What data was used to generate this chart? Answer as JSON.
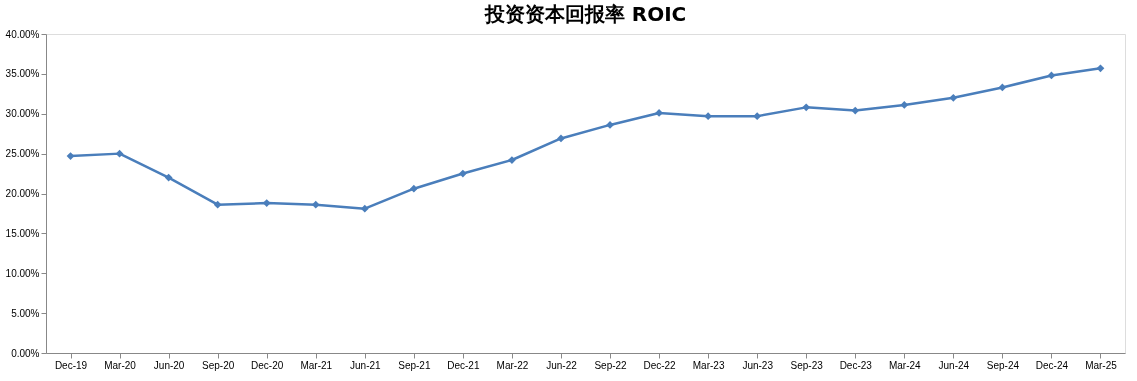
{
  "chart_data": {
    "type": "line",
    "title": "投资资本回报率 ROIC",
    "categories": [
      "Dec-19",
      "Mar-20",
      "Jun-20",
      "Sep-20",
      "Dec-20",
      "Mar-21",
      "Jun-21",
      "Sep-21",
      "Dec-21",
      "Mar-22",
      "Jun-22",
      "Sep-22",
      "Dec-22",
      "Mar-23",
      "Jun-23",
      "Sep-23",
      "Dec-23",
      "Mar-24",
      "Jun-24",
      "Sep-24",
      "Dec-24",
      "Mar-25"
    ],
    "series": [
      {
        "color": "#4a7ebb",
        "values": [
          24.7,
          25.0,
          22.0,
          18.6,
          18.8,
          18.6,
          18.1,
          20.6,
          22.5,
          24.2,
          26.9,
          28.6,
          30.1,
          29.7,
          29.7,
          30.8,
          30.4,
          31.1,
          32.0,
          33.3,
          34.8,
          35.7
        ]
      }
    ],
    "ylim": [
      0,
      40
    ],
    "yticks": [
      {
        "value": 0,
        "label": "0.00%"
      },
      {
        "value": 5,
        "label": "5.00%"
      },
      {
        "value": 10,
        "label": "10.00%"
      },
      {
        "value": 15,
        "label": "15.00%"
      },
      {
        "value": 20,
        "label": "20.00%"
      },
      {
        "value": 25,
        "label": "25.00%"
      },
      {
        "value": 30,
        "label": "30.00%"
      },
      {
        "value": 35,
        "label": "35.00%"
      },
      {
        "value": 40,
        "label": "40.00%"
      }
    ],
    "grid": false,
    "marker": "diamond",
    "line_style": "solid",
    "legend": false
  }
}
